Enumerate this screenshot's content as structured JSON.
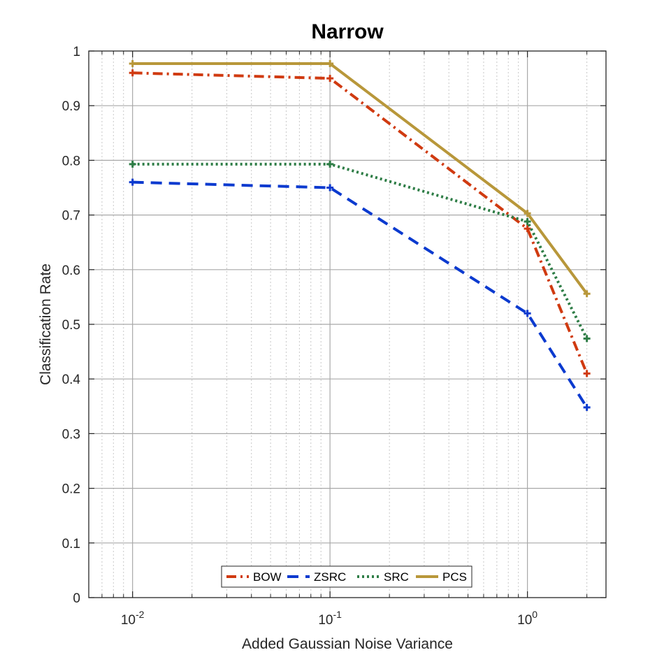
{
  "chart_data": {
    "type": "line",
    "title": "Narrow",
    "xlabel": "Added Gaussian Noise Variance",
    "ylabel": "Classification Rate",
    "xscale": "log",
    "xlim": [
      0.006,
      2.5
    ],
    "ylim": [
      0,
      1
    ],
    "x": [
      0.01,
      0.1,
      1,
      2
    ],
    "xticks": [
      {
        "value": 0.01,
        "base": "10",
        "exp": "-2"
      },
      {
        "value": 0.1,
        "base": "10",
        "exp": "-1"
      },
      {
        "value": 1,
        "base": "10",
        "exp": "0"
      }
    ],
    "yticks": [
      "0",
      "0.1",
      "0.2",
      "0.3",
      "0.4",
      "0.5",
      "0.6",
      "0.7",
      "0.8",
      "0.9",
      "1"
    ],
    "grid": true,
    "legend_position": "bottom-center",
    "series": [
      {
        "name": "BOW",
        "values": [
          0.96,
          0.95,
          0.675,
          0.41
        ],
        "color": "#D03A10",
        "dash": "dash-dot",
        "marker": "plus"
      },
      {
        "name": "ZSRC",
        "values": [
          0.76,
          0.75,
          0.52,
          0.348
        ],
        "color": "#0B3ACF",
        "dash": "dashed",
        "marker": "plus"
      },
      {
        "name": "SRC",
        "values": [
          0.793,
          0.793,
          0.688,
          0.474
        ],
        "color": "#2E7D46",
        "dash": "dotted",
        "marker": "plus"
      },
      {
        "name": "PCS",
        "values": [
          0.977,
          0.977,
          0.703,
          0.556
        ],
        "color": "#B8973A",
        "dash": "solid",
        "marker": "plus"
      }
    ]
  }
}
